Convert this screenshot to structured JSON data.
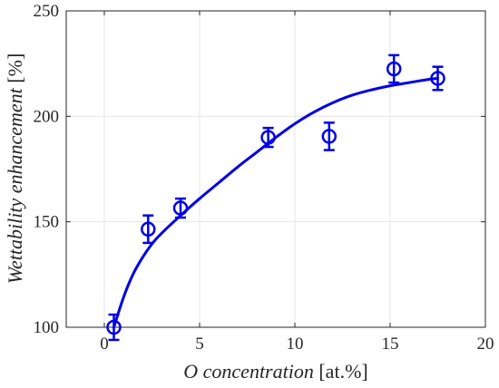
{
  "chart_data": {
    "type": "scatter",
    "title": "",
    "xlabel": {
      "italic": "O concentration",
      "unit": "[at.%]"
    },
    "ylabel": {
      "italic": "Wettability enhancement",
      "unit": "[%]"
    },
    "xlim": [
      -2,
      20
    ],
    "ylim": [
      100,
      250
    ],
    "xticks": [
      "0",
      "5",
      "10",
      "15",
      "20"
    ],
    "xtick_values": [
      0,
      5,
      10,
      15,
      20
    ],
    "yticks": [
      "100",
      "150",
      "200",
      "250"
    ],
    "ytick_values": [
      100,
      150,
      200,
      250
    ],
    "grid": true,
    "legend": "none",
    "series": [
      {
        "kind": "points-with-errorbars",
        "marker": "circle-open",
        "color": "#0000e6",
        "points": [
          {
            "x": 0.5,
            "y": 100,
            "err": 6
          },
          {
            "x": 2.3,
            "y": 146.5,
            "err": 6.5
          },
          {
            "x": 4.0,
            "y": 156.5,
            "err": 4.5
          },
          {
            "x": 8.6,
            "y": 190,
            "err": 4.5
          },
          {
            "x": 11.8,
            "y": 190.5,
            "err": 6.5
          },
          {
            "x": 15.2,
            "y": 222.5,
            "err": 6.5
          },
          {
            "x": 17.5,
            "y": 218,
            "err": 5.5
          }
        ]
      },
      {
        "kind": "fit-line",
        "color": "#0000e6",
        "x": [
          0.5,
          1.0,
          1.5,
          2.0,
          2.5,
          3.0,
          4.0,
          5.0,
          6.0,
          7.0,
          8.0,
          9.0,
          10.0,
          11.0,
          12.0,
          13.0,
          14.0,
          15.0,
          16.0,
          17.0,
          17.5
        ],
        "y": [
          100,
          114,
          125,
          133,
          139.5,
          144.5,
          153,
          161,
          168.5,
          176,
          183,
          190,
          196.5,
          202,
          206.5,
          210,
          212.5,
          214.5,
          216,
          217.5,
          218
        ]
      }
    ]
  }
}
